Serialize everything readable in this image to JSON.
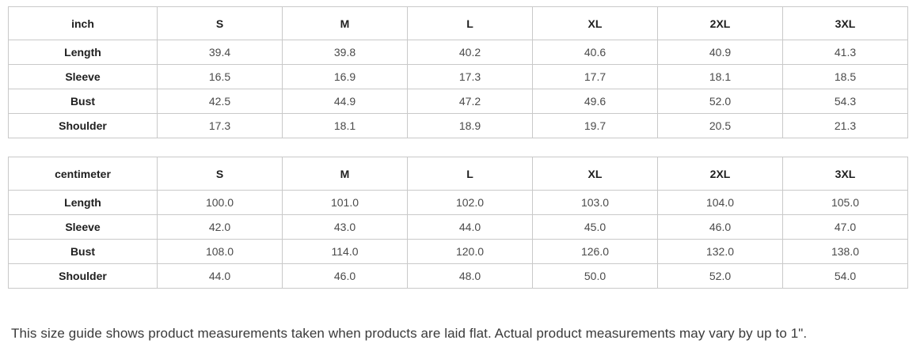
{
  "colors": {
    "table_border": "#c9c9c9",
    "header_text": "#1f1f1f",
    "value_text": "#4a4a4a",
    "note_text": "#3a3a3a",
    "background": "#ffffff"
  },
  "tables": [
    {
      "unit_label": "inch",
      "size_headers": [
        "S",
        "M",
        "L",
        "XL",
        "2XL",
        "3XL"
      ],
      "rows": [
        {
          "label": "Length",
          "values": [
            "39.4",
            "39.8",
            "40.2",
            "40.6",
            "40.9",
            "41.3"
          ]
        },
        {
          "label": "Sleeve",
          "values": [
            "16.5",
            "16.9",
            "17.3",
            "17.7",
            "18.1",
            "18.5"
          ]
        },
        {
          "label": "Bust",
          "values": [
            "42.5",
            "44.9",
            "47.2",
            "49.6",
            "52.0",
            "54.3"
          ]
        },
        {
          "label": "Shoulder",
          "values": [
            "17.3",
            "18.1",
            "18.9",
            "19.7",
            "20.5",
            "21.3"
          ]
        }
      ]
    },
    {
      "unit_label": "centimeter",
      "size_headers": [
        "S",
        "M",
        "L",
        "XL",
        "2XL",
        "3XL"
      ],
      "rows": [
        {
          "label": "Length",
          "values": [
            "100.0",
            "101.0",
            "102.0",
            "103.0",
            "104.0",
            "105.0"
          ]
        },
        {
          "label": "Sleeve",
          "values": [
            "42.0",
            "43.0",
            "44.0",
            "45.0",
            "46.0",
            "47.0"
          ]
        },
        {
          "label": "Bust",
          "values": [
            "108.0",
            "114.0",
            "120.0",
            "126.0",
            "132.0",
            "138.0"
          ]
        },
        {
          "label": "Shoulder",
          "values": [
            "44.0",
            "46.0",
            "48.0",
            "50.0",
            "52.0",
            "54.0"
          ]
        }
      ]
    }
  ],
  "note": "This size guide shows product measurements taken when products are laid flat. Actual product measurements may vary by up to 1\"."
}
